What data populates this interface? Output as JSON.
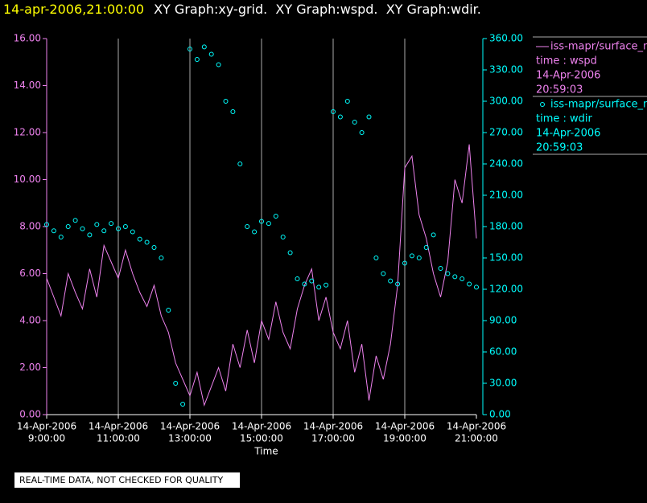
{
  "chart_data": {
    "type": "xy-combo",
    "title": "14-apr-2006,21:00:00",
    "subtitle": "XY Graph:xy-grid.  XY Graph:wspd.  XY Graph:wdir.",
    "xlabel": "Time",
    "note": "REAL-TIME DATA, NOT CHECKED FOR QUALITY",
    "grid": true,
    "xlim": [
      9,
      21
    ],
    "xticks": [
      {
        "value": 9,
        "label": [
          "14-Apr-2006",
          "9:00:00"
        ]
      },
      {
        "value": 11,
        "label": [
          "14-Apr-2006",
          "11:00:00"
        ]
      },
      {
        "value": 13,
        "label": [
          "14-Apr-2006",
          "13:00:00"
        ]
      },
      {
        "value": 15,
        "label": [
          "14-Apr-2006",
          "15:00:00"
        ]
      },
      {
        "value": 17,
        "label": [
          "14-Apr-2006",
          "17:00:00"
        ]
      },
      {
        "value": 19,
        "label": [
          "14-Apr-2006",
          "19:00:00"
        ]
      },
      {
        "value": 21,
        "label": [
          "14-Apr-2006",
          "21:00:00"
        ]
      }
    ],
    "ylim": [
      0,
      16
    ],
    "yticks": [
      {
        "value": 0,
        "label": "0.00"
      },
      {
        "value": 2,
        "label": "2.00"
      },
      {
        "value": 4,
        "label": "4.00"
      },
      {
        "value": 6,
        "label": "6.00"
      },
      {
        "value": 8,
        "label": "8.00"
      },
      {
        "value": 10,
        "label": "10.00"
      },
      {
        "value": 12,
        "label": "12.00"
      },
      {
        "value": 14,
        "label": "14.00"
      },
      {
        "value": 16,
        "label": "16.00"
      }
    ],
    "y2lim": [
      0,
      360
    ],
    "y2ticks": [
      {
        "value": 0,
        "label": "0.00"
      },
      {
        "value": 30,
        "label": "30.00"
      },
      {
        "value": 60,
        "label": "60.00"
      },
      {
        "value": 90,
        "label": "90.00"
      },
      {
        "value": 120,
        "label": "120.00"
      },
      {
        "value": 150,
        "label": "150.00"
      },
      {
        "value": 180,
        "label": "180.00"
      },
      {
        "value": 210,
        "label": "210.00"
      },
      {
        "value": 240,
        "label": "240.00"
      },
      {
        "value": 270,
        "label": "270.00"
      },
      {
        "value": 300,
        "label": "300.00"
      },
      {
        "value": 330,
        "label": "330.00"
      },
      {
        "value": 360,
        "label": "360.00"
      }
    ],
    "x": [
      9.0,
      9.2,
      9.4,
      9.6,
      9.8,
      10.0,
      10.2,
      10.4,
      10.6,
      10.8,
      11.0,
      11.2,
      11.4,
      11.6,
      11.8,
      12.0,
      12.2,
      12.4,
      12.6,
      12.8,
      13.0,
      13.2,
      13.4,
      13.6,
      13.8,
      14.0,
      14.2,
      14.4,
      14.6,
      14.8,
      15.0,
      15.2,
      15.4,
      15.6,
      15.8,
      16.0,
      16.2,
      16.4,
      16.6,
      16.8,
      17.0,
      17.2,
      17.4,
      17.6,
      17.8,
      18.0,
      18.2,
      18.4,
      18.6,
      18.8,
      19.0,
      19.2,
      19.4,
      19.6,
      19.8,
      20.0,
      20.2,
      20.4,
      20.6,
      20.8,
      21.0
    ],
    "series": [
      {
        "name": "iss-mapr/surface_m",
        "legend_text": [
          "time : wspd",
          "14-Apr-2006",
          "20:59:03"
        ],
        "style": "line",
        "color": "#ee82ee",
        "axis": "y",
        "values": [
          5.8,
          5.0,
          4.2,
          6.0,
          5.2,
          4.5,
          6.2,
          5.0,
          7.2,
          6.5,
          5.8,
          7.0,
          6.0,
          5.2,
          4.6,
          5.5,
          4.2,
          3.5,
          2.2,
          1.5,
          0.8,
          1.8,
          0.4,
          1.2,
          2.0,
          1.0,
          3.0,
          2.0,
          3.6,
          2.2,
          4.0,
          3.2,
          4.8,
          3.5,
          2.8,
          4.5,
          5.5,
          6.2,
          4.0,
          5.0,
          3.5,
          2.8,
          4.0,
          1.8,
          3.0,
          0.6,
          2.5,
          1.5,
          3.0,
          5.5,
          10.5,
          11.0,
          8.5,
          7.5,
          6.0,
          5.0,
          6.5,
          10.0,
          9.0,
          11.5,
          7.5
        ]
      },
      {
        "name": "iss-mapr/surface_m",
        "legend_text": [
          "time : wdir",
          "14-Apr-2006",
          "20:59:03"
        ],
        "style": "scatter",
        "color": "#00ffff",
        "axis": "y2",
        "values": [
          182,
          176,
          170,
          180,
          186,
          178,
          172,
          182,
          176,
          183,
          178,
          180,
          175,
          168,
          165,
          160,
          150,
          100,
          30,
          10,
          350,
          340,
          352,
          345,
          335,
          300,
          290,
          240,
          180,
          175,
          185,
          183,
          190,
          170,
          155,
          130,
          125,
          128,
          122,
          124,
          290,
          285,
          300,
          280,
          270,
          285,
          150,
          135,
          128,
          125,
          145,
          152,
          150,
          160,
          172,
          140,
          135,
          132,
          130,
          125,
          122
        ]
      }
    ]
  }
}
